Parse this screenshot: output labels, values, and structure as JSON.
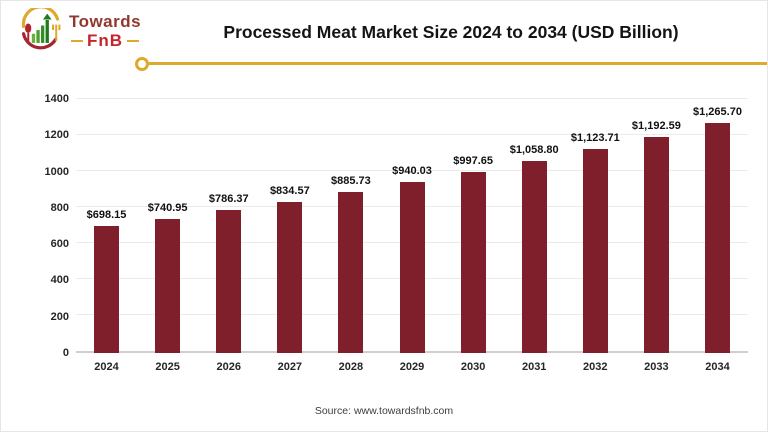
{
  "logo": {
    "brand_top": "Towards",
    "brand_bottom": "FnB",
    "icon": "bar-chart-spoon-fork-icon"
  },
  "header": {
    "title": "Processed Meat Market Size 2024 to 2034 (USD Billion)"
  },
  "chart_data": {
    "type": "bar",
    "title": "Processed Meat Market Size 2024 to 2034 (USD Billion)",
    "categories": [
      "2024",
      "2025",
      "2026",
      "2027",
      "2028",
      "2029",
      "2030",
      "2031",
      "2032",
      "2033",
      "2034"
    ],
    "values": [
      698.15,
      740.95,
      786.37,
      834.57,
      885.73,
      940.03,
      997.65,
      1058.8,
      1123.71,
      1192.59,
      1265.7
    ],
    "value_labels": [
      "$698.15",
      "$740.95",
      "$786.37",
      "$834.57",
      "$885.73",
      "$940.03",
      "$997.65",
      "$1,058.80",
      "$1,123.71",
      "$1,192.59",
      "$1,265.70"
    ],
    "xlabel": "",
    "ylabel": "",
    "ylim": [
      0,
      1400
    ],
    "yticks": [
      0,
      200,
      400,
      600,
      800,
      1000,
      1200,
      1400
    ],
    "grid": true,
    "legend": false,
    "bar_color": "#7f1f2b"
  },
  "footer": {
    "source": "Source: www.towardsfnb.com"
  },
  "colors": {
    "accent_gold": "#dfa92e",
    "bar_maroon": "#7f1f2b",
    "brand_maroon": "#93372c",
    "brand_red": "#c5252b",
    "grid_gray": "#ebebeb",
    "axis_gray": "#cfcfcf"
  }
}
